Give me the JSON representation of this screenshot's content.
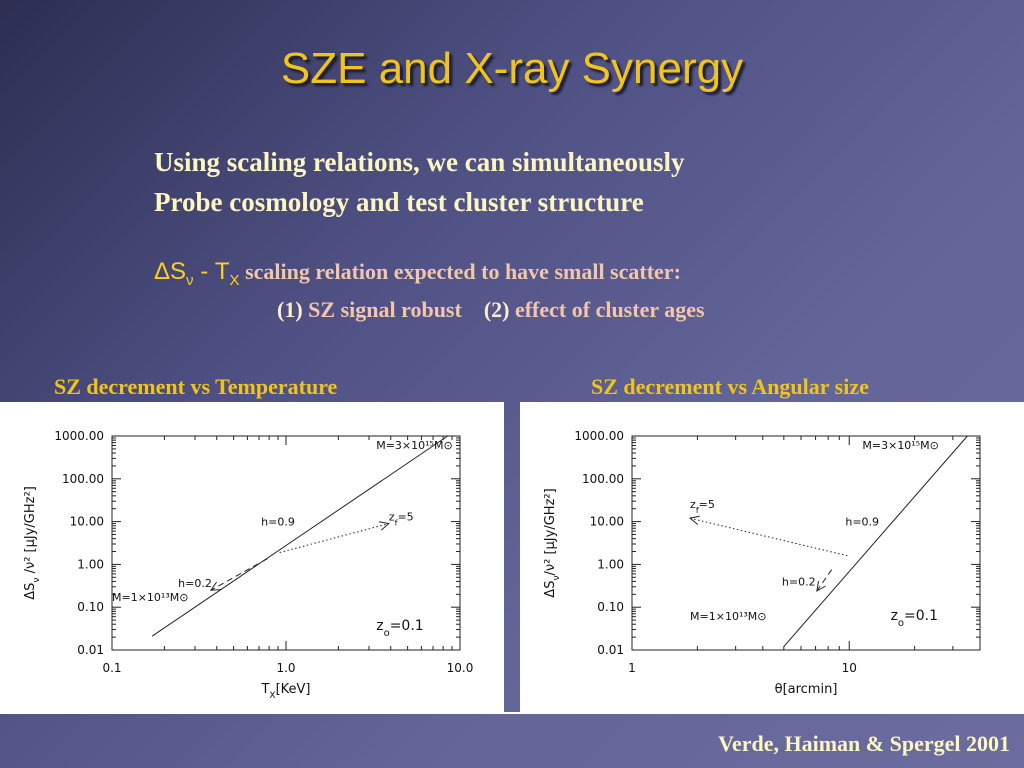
{
  "slide": {
    "title": "SZE and X-ray Synergy",
    "intro_line1": "Using scaling relations, we can simultaneously",
    "intro_line2": "Probe cosmology and test cluster structure",
    "scaling_symbol_delta": "ΔS",
    "scaling_symbol_nu": "ν",
    "scaling_symbol_dash": " - T",
    "scaling_symbol_x": "X",
    "scaling_text": "scaling relation expected to have small scatter:",
    "point1_num": "(1)",
    "point1_text": "SZ signal robust",
    "point2_num": "(2)",
    "point2_text": "effect of cluster ages",
    "citation": "Verde, Haiman & Spergel 2001"
  },
  "colors": {
    "title": "#f0c41a",
    "intro": "#fdf6c0",
    "accent_text": "#f4c6a8",
    "caption": "#f0c41a"
  },
  "chart_data": [
    {
      "type": "line",
      "caption": "SZ decrement vs Temperature",
      "xlabel": "T",
      "xlabel_sub": "X",
      "xlabel_unit": "[KeV]",
      "ylabel": "ΔS",
      "ylabel_sub": "ν",
      "ylabel_rest": " /ν² [μJy/GHz²]",
      "xscale": "log",
      "yscale": "log",
      "xlim": [
        0.1,
        10.0
      ],
      "ylim": [
        0.01,
        1000.0
      ],
      "xticks": [
        0.1,
        1.0,
        10.0
      ],
      "xtick_labels": [
        "0.1",
        "1.0",
        "10.0"
      ],
      "yticks": [
        0.01,
        0.1,
        1.0,
        10.0,
        100.0,
        1000.0
      ],
      "ytick_labels": [
        "0.01",
        "0.10",
        "1.00",
        "10.00",
        "100.00",
        "1000.00"
      ],
      "series": [
        {
          "style": "solid",
          "x": [
            0.17,
            8.5
          ],
          "y": [
            0.021,
            1000.0
          ]
        },
        {
          "style": "dotted",
          "x": [
            0.92,
            3.9
          ],
          "y": [
            1.9,
            9.0
          ]
        },
        {
          "style": "dashed",
          "x": [
            0.78,
            0.37
          ],
          "y": [
            1.35,
            0.25
          ]
        }
      ],
      "annotations": [
        {
          "text": "M=3×10¹⁵M⊙",
          "x": 3.3,
          "y": 500
        },
        {
          "text": "h=0.9",
          "x": 0.72,
          "y": 8.2
        },
        {
          "text": "z",
          "sub": "f",
          "rest": "=5",
          "x": 3.9,
          "y": 10.5
        },
        {
          "text": "h=0.2",
          "x": 0.24,
          "y": 0.3
        },
        {
          "text": "M=1×10¹³M⊙",
          "x": 0.1,
          "y": 0.14
        },
        {
          "text": "z",
          "sub": "o",
          "rest": "=0.1",
          "x": 3.3,
          "y": 0.029
        }
      ]
    },
    {
      "type": "line",
      "caption": "SZ decrement vs Angular size",
      "xlabel": "θ",
      "xlabel_sub": "",
      "xlabel_unit": "[arcmin]",
      "ylabel": "ΔS",
      "ylabel_sub": "ν",
      "ylabel_rest": "/ν² [μJy/GHz²]",
      "xscale": "log",
      "yscale": "log",
      "xlim": [
        1,
        40
      ],
      "ylim": [
        0.01,
        1000.0
      ],
      "xticks": [
        1,
        10
      ],
      "xtick_labels": [
        "1",
        "10"
      ],
      "yticks": [
        0.01,
        0.1,
        1.0,
        10.0,
        100.0,
        1000.0
      ],
      "ytick_labels": [
        "0.01",
        "0.10",
        "1.00",
        "10.00",
        "100.00",
        "1000.00"
      ],
      "series": [
        {
          "style": "solid",
          "x": [
            5.0,
            35.0
          ],
          "y": [
            0.012,
            1000.0
          ]
        },
        {
          "style": "dotted",
          "x": [
            9.8,
            1.85
          ],
          "y": [
            1.6,
            12.0
          ]
        },
        {
          "style": "dashed",
          "x": [
            8.3,
            7.1
          ],
          "y": [
            0.75,
            0.24
          ]
        }
      ],
      "annotations": [
        {
          "text": "M=3×10¹⁵M⊙",
          "x": 11.5,
          "y": 500
        },
        {
          "text": "z",
          "sub": "f",
          "rest": "=5",
          "x": 1.85,
          "y": 21
        },
        {
          "text": "h=0.9",
          "x": 9.6,
          "y": 8.2
        },
        {
          "text": "h=0.2",
          "x": 4.9,
          "y": 0.32
        },
        {
          "text": "M=1×10¹³M⊙",
          "x": 1.85,
          "y": 0.05
        },
        {
          "text": "z",
          "sub": "o",
          "rest": "=0.1",
          "x": 15.5,
          "y": 0.05
        }
      ]
    }
  ]
}
